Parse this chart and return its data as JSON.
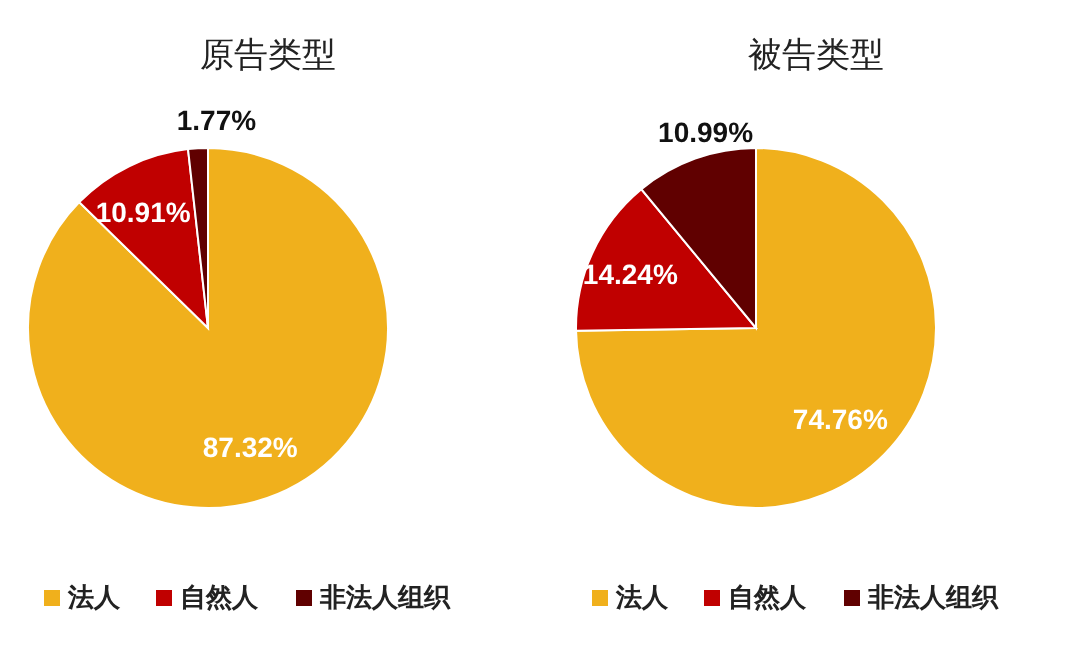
{
  "chart_data": [
    {
      "type": "pie",
      "title": "原告类型",
      "categories": [
        "法人",
        "自然人",
        "非法人组织"
      ],
      "values": [
        87.32,
        10.91,
        1.77
      ],
      "colors": [
        "#f0b01c",
        "#c00000",
        "#600000"
      ],
      "value_labels": [
        "87.32%",
        "10.91%",
        "1.77%"
      ],
      "legend": "bottom"
    },
    {
      "type": "pie",
      "title": "被告类型",
      "categories": [
        "法人",
        "自然人",
        "非法人组织"
      ],
      "values": [
        74.76,
        14.24,
        10.99
      ],
      "colors": [
        "#f0b01c",
        "#c00000",
        "#600000"
      ],
      "value_labels": [
        "74.76%",
        "14.24%",
        "10.99%"
      ],
      "legend": "bottom"
    }
  ]
}
